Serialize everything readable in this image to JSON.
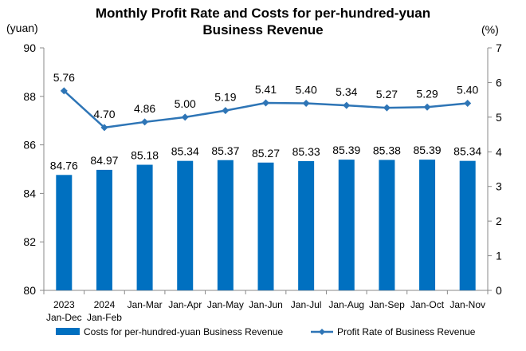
{
  "chart_data": {
    "type": "bar",
    "title_line1": "Monthly Profit Rate and Costs for per-hundred-yuan",
    "title_line2": "Business Revenue",
    "left_unit": "(yuan)",
    "right_unit": "(%)",
    "categories": [
      [
        "2023",
        "Jan-Dec"
      ],
      [
        "2024",
        "Jan-Feb"
      ],
      [
        "Jan-Mar"
      ],
      [
        "Jan-Apr"
      ],
      [
        "Jan-May"
      ],
      [
        "Jan-Jun"
      ],
      [
        "Jan-Jul"
      ],
      [
        "Jan-Aug"
      ],
      [
        "Jan-Sep"
      ],
      [
        "Jan-Oct"
      ],
      [
        "Jan-Nov"
      ]
    ],
    "series": [
      {
        "name": "Costs for per-hundred-yuan Business Revenue",
        "type": "bar",
        "axis": "left",
        "color": "#0070C0",
        "values": [
          84.76,
          84.97,
          85.18,
          85.34,
          85.37,
          85.27,
          85.33,
          85.39,
          85.38,
          85.39,
          85.34
        ],
        "labels": [
          "84.76",
          "84.97",
          "85.18",
          "85.34",
          "85.37",
          "85.27",
          "85.33",
          "85.39",
          "85.38",
          "85.39",
          "85.34"
        ]
      },
      {
        "name": "Profit Rate of Business Revenue",
        "type": "line",
        "axis": "right",
        "color": "#2E75B6",
        "values": [
          5.76,
          4.7,
          4.86,
          5.0,
          5.19,
          5.41,
          5.4,
          5.34,
          5.27,
          5.29,
          5.4
        ],
        "labels": [
          "5.76",
          "4.70",
          "4.86",
          "5.00",
          "5.19",
          "5.41",
          "5.40",
          "5.34",
          "5.27",
          "5.29",
          "5.40"
        ]
      }
    ],
    "ylim_left": [
      80,
      90
    ],
    "yticks_left": [
      "80",
      "82",
      "84",
      "86",
      "88",
      "90"
    ],
    "ylim_right": [
      0,
      7
    ],
    "yticks_right": [
      "0",
      "1",
      "2",
      "3",
      "4",
      "5",
      "6",
      "7"
    ],
    "grid": false,
    "legend_position": "bottom"
  }
}
